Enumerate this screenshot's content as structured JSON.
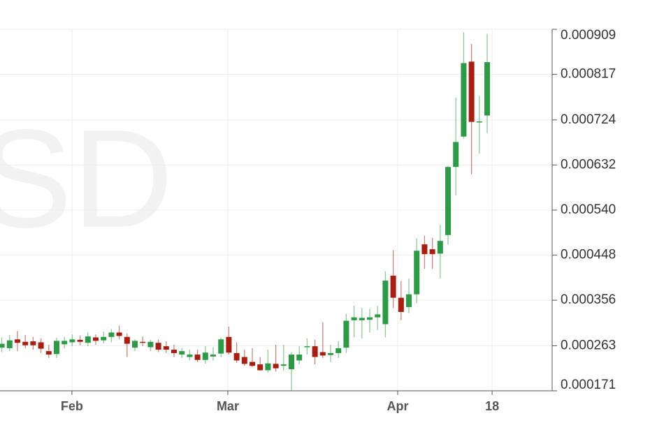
{
  "chart_data": {
    "type": "candlestick",
    "watermark": "SD",
    "x": [
      0,
      1,
      2,
      3,
      4,
      5,
      6,
      7,
      8,
      9,
      10,
      11,
      12,
      13,
      14,
      15,
      16,
      17,
      18,
      19,
      20,
      21,
      22,
      23,
      24,
      25,
      26,
      27,
      28,
      29,
      30,
      31,
      32,
      33,
      34,
      35,
      36,
      37,
      38,
      39,
      40,
      41,
      42,
      43,
      44,
      45,
      46,
      47,
      48,
      49,
      50,
      51,
      52,
      53,
      54,
      55,
      56,
      57,
      58,
      59,
      60,
      61,
      62
    ],
    "open": [
      0.000259,
      0.000258,
      0.000276,
      0.000271,
      0.000272,
      0.00027,
      0.000252,
      0.000246,
      0.000266,
      0.00027,
      0.000275,
      0.000269,
      0.00028,
      0.000274,
      0.000281,
      0.00029,
      0.000281,
      0.000259,
      0.000271,
      0.00026,
      0.000269,
      0.000262,
      0.000255,
      0.000245,
      0.00024,
      0.000245,
      0.000234,
      0.000241,
      0.000247,
      0.000281,
      0.000248,
      0.00024,
      0.00023,
      0.000225,
      0.000213,
      0.000226,
      0.000222,
      0.000215,
      0.000233,
      0.00026,
      0.000262,
      0.00025,
      0.000244,
      0.000248,
      0.000259,
      0.000315,
      0.000315,
      0.000316,
      0.000321,
      0.000307,
      0.000406,
      0.000361,
      0.000342,
      0.000368,
      0.00047,
      0.00046,
      0.000451,
      0.000489,
      0.000628,
      0.00069,
      0.000843,
      0.000719,
      0.000733
    ],
    "high": [
      0.00028,
      0.000285,
      0.000293,
      0.000285,
      0.000281,
      0.000278,
      0.000265,
      0.000279,
      0.000281,
      0.000286,
      0.000284,
      0.00029,
      0.000286,
      0.000292,
      0.000297,
      0.000304,
      0.000288,
      0.000276,
      0.000282,
      0.000275,
      0.000276,
      0.000272,
      0.000265,
      0.000258,
      0.000255,
      0.000255,
      0.000262,
      0.00026,
      0.00028,
      0.000302,
      0.00027,
      0.000255,
      0.000258,
      0.00024,
      0.000255,
      0.000265,
      0.000265,
      0.00025,
      0.000262,
      0.000278,
      0.000275,
      0.000311,
      0.000265,
      0.000272,
      0.000328,
      0.000345,
      0.00034,
      0.000338,
      0.000344,
      0.000415,
      0.000458,
      0.000395,
      0.0004,
      0.000482,
      0.000488,
      0.000483,
      0.00051,
      0.00063,
      0.00077,
      0.000903,
      0.000879,
      0.000773,
      0.0009
    ],
    "low": [
      0.00025,
      0.000252,
      0.000252,
      0.000258,
      0.000255,
      0.000248,
      0.000238,
      0.000238,
      0.000258,
      0.000262,
      0.000264,
      0.000262,
      0.000265,
      0.000268,
      0.00027,
      0.000276,
      0.00024,
      0.000252,
      0.000262,
      0.000252,
      0.00025,
      0.000248,
      0.00024,
      0.000238,
      0.000233,
      0.00023,
      0.000226,
      0.000233,
      0.00024,
      0.000245,
      0.000228,
      0.000222,
      0.000219,
      0.000212,
      0.000208,
      0.00021,
      0.000212,
      0.000172,
      0.000225,
      0.000245,
      0.000225,
      0.000238,
      0.00023,
      0.000238,
      0.000248,
      0.00028,
      0.000278,
      0.00029,
      0.000295,
      0.00028,
      0.00034,
      0.000315,
      0.00033,
      0.00035,
      0.00042,
      0.00042,
      0.0004,
      0.00047,
      0.00057,
      0.000686,
      0.000613,
      0.000655,
      0.000697
    ],
    "close": [
      0.000267,
      0.000274,
      0.000269,
      0.000264,
      0.000264,
      0.000257,
      0.000245,
      0.000273,
      0.000273,
      0.000276,
      0.000271,
      0.000282,
      0.000273,
      0.000281,
      0.00029,
      0.000283,
      0.000267,
      0.000273,
      0.000269,
      0.000271,
      0.000255,
      0.000255,
      0.000248,
      0.000252,
      0.000245,
      0.000234,
      0.000249,
      0.000245,
      0.000276,
      0.000249,
      0.000233,
      0.000226,
      0.000222,
      0.000213,
      0.000227,
      0.000217,
      0.000225,
      0.000245,
      0.000245,
      0.000262,
      0.00024,
      0.000243,
      0.000248,
      0.000258,
      0.000314,
      0.000321,
      0.00032,
      0.000321,
      0.000327,
      0.000396,
      0.000361,
      0.000332,
      0.000368,
      0.000457,
      0.00045,
      0.00045,
      0.000477,
      0.000628,
      0.000679,
      0.00084,
      0.00072,
      0.000721,
      0.000842
    ],
    "up_color": "#2e9a47",
    "down_color": "#a61f10",
    "xlim": [
      -0.23,
      70.3
    ],
    "xticks": [
      {
        "value": 8.96,
        "label": "Feb"
      },
      {
        "value": 28.87,
        "label": "Mar"
      },
      {
        "value": 50.57,
        "label": "Apr"
      },
      {
        "value": 62.63,
        "label": "18"
      }
    ],
    "ylim": [
      0.000171,
      0.000909
    ],
    "yticks": [
      0.000171,
      0.000263,
      0.000356,
      0.000448,
      {
        "value": 0.00054,
        "label": "0.000540"
      },
      0.000632,
      0.000724,
      0.000817,
      0.000909
    ],
    "grid": true
  }
}
